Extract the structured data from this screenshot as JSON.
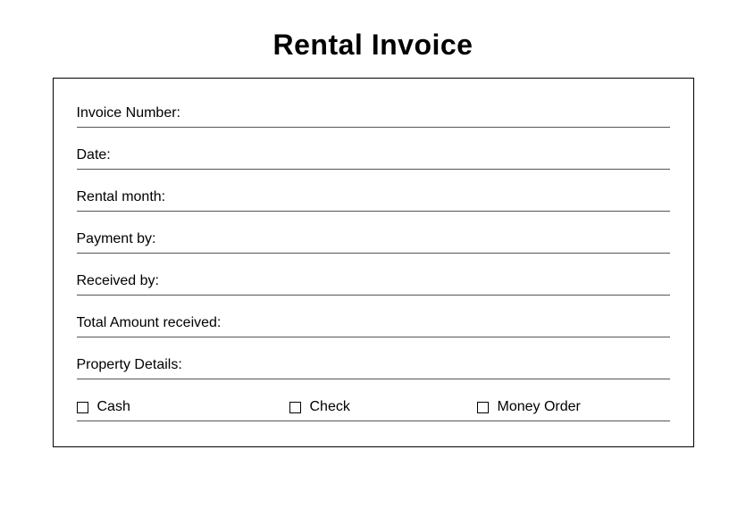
{
  "title": "Rental Invoice",
  "fields": [
    {
      "label": "Invoice Number:"
    },
    {
      "label": "Date:"
    },
    {
      "label": "Rental month:"
    },
    {
      "label": "Payment by:"
    },
    {
      "label": "Received by:"
    },
    {
      "label": "Total Amount received:"
    },
    {
      "label": "Property Details:"
    }
  ],
  "payment_options": [
    {
      "label": "Cash"
    },
    {
      "label": "Check"
    },
    {
      "label": "Money Order"
    }
  ],
  "style": {
    "background_color": "#ffffff",
    "border_color": "#000000",
    "line_color": "#555555",
    "text_color": "#000000",
    "title_fontsize": 32,
    "label_fontsize": 16,
    "container_width": 718,
    "field_spacing": 22
  }
}
